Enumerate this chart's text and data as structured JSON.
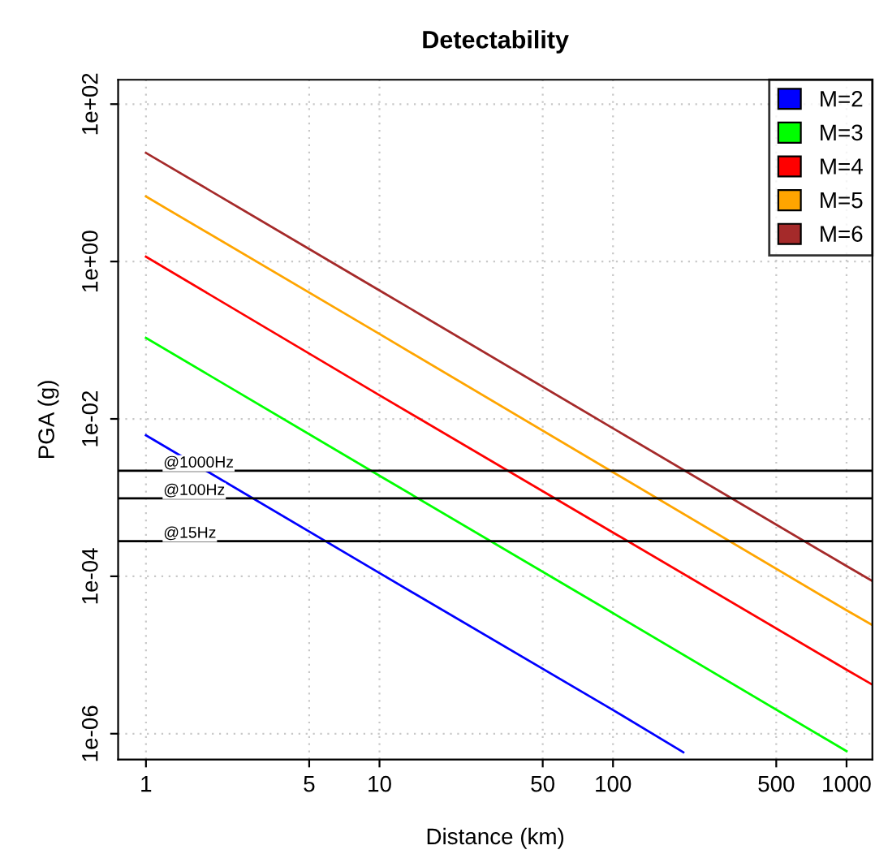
{
  "chart_data": {
    "type": "line",
    "title": "Detectability",
    "xlabel": "Distance (km)",
    "ylabel": "PGA (g)",
    "log": "xy",
    "xlim": [
      0.76,
      1290
    ],
    "ylim": [
      4.7e-07,
      204
    ],
    "xticks": [
      1,
      5,
      10,
      50,
      100,
      500,
      1000
    ],
    "yticks": [
      {
        "value": 100,
        "label": "1e+02"
      },
      {
        "value": 1,
        "label": "1e+00"
      },
      {
        "value": 0.01,
        "label": "1e-02"
      },
      {
        "value": 0.0001,
        "label": "1e-04"
      },
      {
        "value": 1e-06,
        "label": "1e-06"
      }
    ],
    "grid": true,
    "legend": "top right",
    "line_style": "solid",
    "marker": "none",
    "series": [
      {
        "name": "M=2",
        "color": "#0000ff",
        "x": [
          1,
          10,
          100,
          200
        ],
        "values": [
          0.0062,
          0.00011,
          2e-06,
          5.8e-07
        ]
      },
      {
        "name": "M=3",
        "color": "#00ff00",
        "x": [
          1,
          10,
          100,
          1000
        ],
        "values": [
          0.107,
          0.0019,
          3.4e-05,
          6e-07
        ]
      },
      {
        "name": "M=4",
        "color": "#ff0000",
        "x": [
          1,
          10,
          100,
          1000,
          1290
        ],
        "values": [
          1.15,
          0.02,
          0.00036,
          6.5e-06,
          4.2e-06
        ]
      },
      {
        "name": "M=5",
        "color": "#ffa500",
        "x": [
          1,
          10,
          100,
          1000,
          1290
        ],
        "values": [
          6.7,
          0.12,
          0.0021,
          3.7e-05,
          2.4e-05
        ]
      },
      {
        "name": "M=6",
        "color": "#a52a2a",
        "x": [
          1,
          10,
          100,
          1000,
          1290
        ],
        "values": [
          24,
          0.43,
          0.0076,
          0.000135,
          8.7e-05
        ]
      }
    ],
    "ref_lines": [
      {
        "axis": "y",
        "value": 0.0022,
        "label": "@1000Hz",
        "color": "#000000"
      },
      {
        "axis": "y",
        "value": 0.00098,
        "label": "@100Hz",
        "color": "#000000"
      },
      {
        "axis": "y",
        "value": 0.00028,
        "label": "@15Hz",
        "color": "#000000"
      }
    ]
  }
}
